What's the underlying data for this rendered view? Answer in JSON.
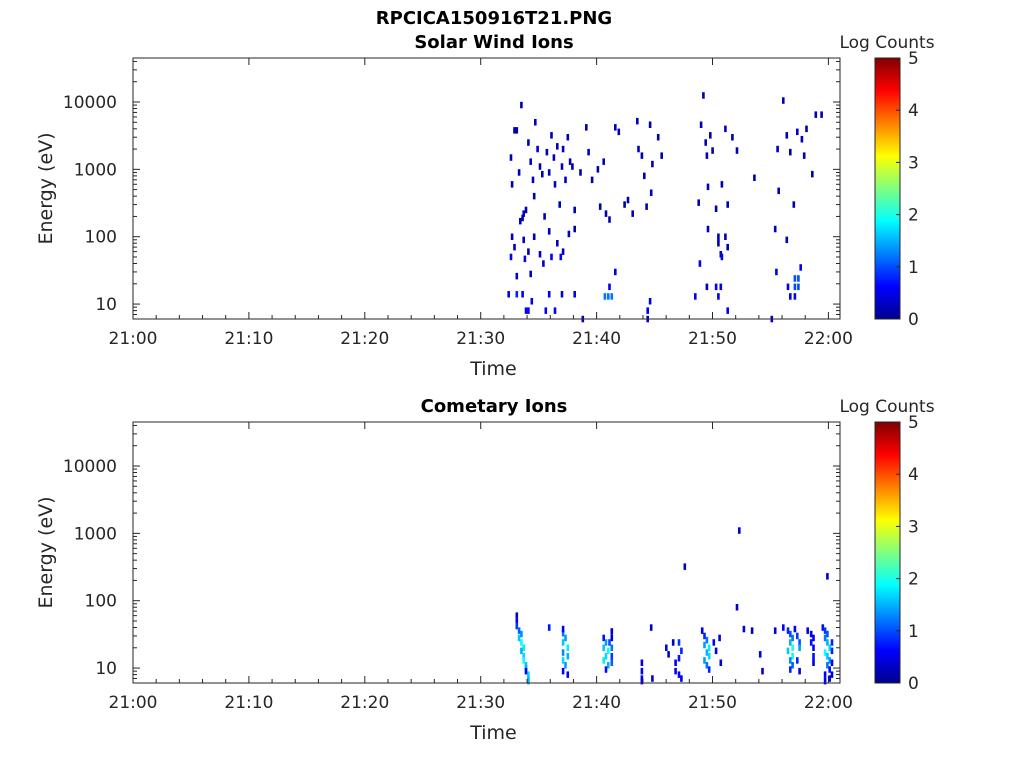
{
  "figure": {
    "filename": "RPCICA150916T21.PNG"
  },
  "colormap": {
    "name": "jet",
    "stops": [
      "#00008f",
      "#0000ff",
      "#0080ff",
      "#00ffff",
      "#80ff80",
      "#ffff00",
      "#ff8000",
      "#ff0000",
      "#800000"
    ]
  },
  "chart_data": [
    {
      "type": "heatmap",
      "title": "Solar Wind Ions",
      "xlabel": "Time",
      "ylabel": "Energy (eV)",
      "x_ticks": [
        "21:00",
        "21:10",
        "21:20",
        "21:30",
        "21:40",
        "21:50",
        "22:00"
      ],
      "x_range_min": [
        0,
        61
      ],
      "y_scale": "log",
      "y_ticks": [
        "10",
        "100",
        "1000",
        "10000"
      ],
      "y_range": [
        6,
        45000
      ],
      "colorbar": {
        "label": "Log Counts",
        "range": [
          0,
          5
        ],
        "ticks": [
          "0",
          "1",
          "2",
          "3",
          "4",
          "5"
        ]
      },
      "cells": [
        [
          32.5,
          1500,
          0.2
        ],
        [
          32.6,
          600,
          0.3
        ],
        [
          32.8,
          3800,
          0.2
        ],
        [
          33.0,
          3800,
          0.2
        ],
        [
          33.2,
          900,
          0.2
        ],
        [
          33.4,
          9000,
          0.2
        ],
        [
          33.5,
          190,
          0.3
        ],
        [
          33.6,
          220,
          0.3
        ],
        [
          33.8,
          250,
          0.2
        ],
        [
          34.0,
          2500,
          0.2
        ],
        [
          34.2,
          1300,
          0.3
        ],
        [
          34.4,
          700,
          0.2
        ],
        [
          34.5,
          400,
          0.2
        ],
        [
          34.6,
          5000,
          0.2
        ],
        [
          34.8,
          2000,
          0.3
        ],
        [
          35.0,
          1100,
          0.2
        ],
        [
          35.2,
          850,
          0.3
        ],
        [
          35.4,
          200,
          0.2
        ],
        [
          35.6,
          1800,
          0.2
        ],
        [
          35.8,
          900,
          0.3
        ],
        [
          36.0,
          3200,
          0.2
        ],
        [
          36.2,
          1500,
          0.2
        ],
        [
          36.3,
          600,
          0.3
        ],
        [
          36.5,
          2200,
          0.2
        ],
        [
          36.7,
          300,
          0.2
        ],
        [
          36.9,
          1100,
          0.3
        ],
        [
          37.0,
          2000,
          0.2
        ],
        [
          37.2,
          700,
          0.3
        ],
        [
          37.4,
          3000,
          0.2
        ],
        [
          37.6,
          1300,
          0.2
        ],
        [
          37.8,
          1100,
          0.2
        ],
        [
          38.0,
          250,
          0.3
        ],
        [
          38.5,
          900,
          0.2
        ],
        [
          39.0,
          4200,
          0.2
        ],
        [
          39.2,
          1800,
          0.2
        ],
        [
          39.5,
          700,
          0.2
        ],
        [
          40.0,
          1000,
          0.2
        ],
        [
          40.2,
          280,
          0.2
        ],
        [
          40.5,
          1300,
          0.3
        ],
        [
          40.7,
          220,
          0.2
        ],
        [
          41.0,
          180,
          0.2
        ],
        [
          41.5,
          4200,
          0.2
        ],
        [
          41.8,
          3600,
          0.2
        ],
        [
          42.3,
          300,
          0.2
        ],
        [
          42.6,
          350,
          0.2
        ],
        [
          43.0,
          220,
          0.2
        ],
        [
          43.4,
          5200,
          0.2
        ],
        [
          43.5,
          2000,
          0.3
        ],
        [
          43.8,
          1600,
          0.2
        ],
        [
          44.0,
          800,
          0.2
        ],
        [
          44.2,
          280,
          0.2
        ],
        [
          44.5,
          4600,
          0.2
        ],
        [
          44.6,
          450,
          0.3
        ],
        [
          44.7,
          1200,
          0.2
        ],
        [
          45.2,
          3000,
          0.2
        ],
        [
          45.5,
          1600,
          0.2
        ],
        [
          48.7,
          320,
          0.2
        ],
        [
          48.9,
          4600,
          0.2
        ],
        [
          49.1,
          12500,
          0.2
        ],
        [
          49.3,
          2500,
          0.2
        ],
        [
          49.4,
          1600,
          0.3
        ],
        [
          49.5,
          550,
          0.2
        ],
        [
          49.7,
          3200,
          0.2
        ],
        [
          49.9,
          1900,
          0.2
        ],
        [
          50.2,
          260,
          0.2
        ],
        [
          50.4,
          100,
          0.3
        ],
        [
          50.7,
          600,
          0.2
        ],
        [
          51.0,
          4000,
          0.2
        ],
        [
          51.2,
          300,
          0.2
        ],
        [
          51.6,
          3000,
          0.2
        ],
        [
          52.0,
          1900,
          0.2
        ],
        [
          53.5,
          750,
          0.2
        ],
        [
          55.5,
          2000,
          0.2
        ],
        [
          55.6,
          480,
          0.2
        ],
        [
          56.0,
          10500,
          0.2
        ],
        [
          56.3,
          3200,
          0.2
        ],
        [
          56.6,
          1800,
          0.2
        ],
        [
          56.9,
          300,
          0.2
        ],
        [
          57.2,
          3600,
          0.3
        ],
        [
          57.6,
          2800,
          0.2
        ],
        [
          57.8,
          1600,
          0.2
        ],
        [
          58.0,
          4000,
          0.2
        ],
        [
          58.5,
          850,
          0.2
        ],
        [
          58.8,
          6500,
          0.2
        ],
        [
          59.3,
          6500,
          0.2
        ],
        [
          32.6,
          100,
          0.3
        ],
        [
          32.8,
          70,
          0.3
        ],
        [
          33.3,
          170,
          0.2
        ],
        [
          33.6,
          90,
          0.3
        ],
        [
          34.0,
          60,
          0.2
        ],
        [
          34.5,
          100,
          0.2
        ],
        [
          35.0,
          55,
          0.3
        ],
        [
          35.3,
          40,
          0.3
        ],
        [
          35.8,
          120,
          0.2
        ],
        [
          36.5,
          80,
          0.2
        ],
        [
          37.0,
          60,
          0.2
        ],
        [
          37.5,
          110,
          0.3
        ],
        [
          38.0,
          130,
          0.2
        ],
        [
          49.5,
          130,
          0.2
        ],
        [
          50.4,
          80,
          0.2
        ],
        [
          50.6,
          55,
          0.3
        ],
        [
          51.0,
          100,
          0.2
        ],
        [
          51.2,
          70,
          0.2
        ],
        [
          55.3,
          130,
          0.2
        ],
        [
          56.3,
          90,
          0.2
        ],
        [
          32.5,
          50,
          0.6
        ],
        [
          33.7,
          47,
          0.6
        ],
        [
          36.0,
          50,
          0.6
        ],
        [
          36.8,
          50,
          0.6
        ],
        [
          48.8,
          40,
          0.6
        ],
        [
          50.7,
          50,
          0.6
        ],
        [
          33.0,
          26,
          0.3
        ],
        [
          34.2,
          28,
          0.3
        ],
        [
          41.5,
          30,
          0.4
        ],
        [
          55.4,
          30,
          0.5
        ],
        [
          57.5,
          35,
          0.6
        ],
        [
          57.0,
          24,
          1.0
        ],
        [
          57.3,
          24,
          1.0
        ],
        [
          57.0,
          18,
          1.0
        ],
        [
          57.3,
          18,
          1.0
        ],
        [
          56.4,
          18,
          0.5
        ],
        [
          50.2,
          18,
          0.6
        ],
        [
          50.6,
          18,
          0.5
        ],
        [
          49.4,
          18,
          0.3
        ],
        [
          41.0,
          18,
          0.5
        ],
        [
          32.3,
          14,
          0.5
        ],
        [
          33.0,
          14,
          0.8
        ],
        [
          33.5,
          14,
          0.6
        ],
        [
          34.3,
          11,
          0.5
        ],
        [
          35.8,
          14,
          0.5
        ],
        [
          36.9,
          14,
          0.5
        ],
        [
          38.0,
          14,
          0.5
        ],
        [
          40.6,
          13,
          1.2
        ],
        [
          40.9,
          13,
          1.2
        ],
        [
          41.2,
          13,
          1.2
        ],
        [
          44.5,
          11,
          0.5
        ],
        [
          48.4,
          13,
          0.5
        ],
        [
          50.4,
          13,
          0.5
        ],
        [
          51.2,
          8,
          0.5
        ],
        [
          56.6,
          13,
          0.6
        ],
        [
          57.0,
          13,
          0.6
        ],
        [
          33.8,
          8,
          0.6
        ],
        [
          34.0,
          8,
          0.6
        ],
        [
          35.5,
          8,
          0.6
        ],
        [
          36.3,
          8,
          0.6
        ],
        [
          44.3,
          8,
          0.5
        ],
        [
          55.0,
          6,
          0.3
        ],
        [
          38.7,
          6,
          0.3
        ],
        [
          44.3,
          6,
          0.3
        ]
      ]
    },
    {
      "type": "heatmap",
      "title": "Cometary Ions",
      "xlabel": "Time",
      "ylabel": "Energy (eV)",
      "x_ticks": [
        "21:00",
        "21:10",
        "21:20",
        "21:30",
        "21:40",
        "21:50",
        "22:00"
      ],
      "x_range_min": [
        0,
        61
      ],
      "y_scale": "log",
      "y_ticks": [
        "10",
        "100",
        "1000",
        "10000"
      ],
      "y_range": [
        6,
        45000
      ],
      "colorbar": {
        "label": "Log Counts",
        "range": [
          0,
          5
        ],
        "ticks": [
          "0",
          "1",
          "2",
          "3",
          "4",
          "5"
        ]
      },
      "cells": [
        [
          33.0,
          60,
          0.4
        ],
        [
          33.0,
          48,
          0.6
        ],
        [
          33.0,
          42,
          0.9
        ],
        [
          33.2,
          36,
          1.1
        ],
        [
          33.4,
          32,
          1.3
        ],
        [
          33.2,
          28,
          1.6
        ],
        [
          33.4,
          24,
          1.9
        ],
        [
          33.6,
          20,
          1.8
        ],
        [
          33.4,
          18,
          1.5
        ],
        [
          33.6,
          15,
          1.7
        ],
        [
          33.6,
          13,
          1.9
        ],
        [
          33.8,
          11,
          1.6
        ],
        [
          33.8,
          10,
          1.5
        ],
        [
          34.0,
          8,
          1.7
        ],
        [
          34.0,
          7,
          1.6
        ],
        [
          34.0,
          6.4,
          1.5
        ],
        [
          33.8,
          9,
          0.6
        ],
        [
          37.0,
          33,
          1.2
        ],
        [
          37.2,
          28,
          1.4
        ],
        [
          37.0,
          24,
          1.6
        ],
        [
          37.4,
          20,
          1.8
        ],
        [
          37.0,
          17,
          1.3
        ],
        [
          37.4,
          15,
          1.5
        ],
        [
          37.0,
          13,
          1.7
        ],
        [
          37.2,
          11,
          1.4
        ],
        [
          37.0,
          9,
          0.6
        ],
        [
          37.4,
          8,
          0.5
        ],
        [
          35.8,
          40,
          0.7
        ],
        [
          37.0,
          38,
          0.6
        ],
        [
          40.5,
          28,
          0.7
        ],
        [
          40.7,
          24,
          1.4
        ],
        [
          40.5,
          20,
          1.6
        ],
        [
          40.9,
          18,
          1.9
        ],
        [
          40.7,
          15,
          1.7
        ],
        [
          40.5,
          13,
          1.8
        ],
        [
          40.9,
          11,
          1.5
        ],
        [
          40.7,
          9.5,
          0.7
        ],
        [
          41.2,
          28,
          0.4
        ],
        [
          41.2,
          35,
          0.3
        ],
        [
          41.0,
          24,
          1.0
        ],
        [
          41.2,
          20,
          1.2
        ],
        [
          41.2,
          15,
          0.9
        ],
        [
          41.2,
          12,
          1.1
        ],
        [
          43.8,
          12,
          0.5
        ],
        [
          43.8,
          9,
          0.6
        ],
        [
          43.8,
          7,
          0.6
        ],
        [
          43.8,
          6.4,
          0.6
        ],
        [
          44.6,
          40,
          0.3
        ],
        [
          44.7,
          7,
          0.4
        ],
        [
          45.9,
          20,
          0.6
        ],
        [
          46.1,
          16,
          0.4
        ],
        [
          46.5,
          24,
          0.3
        ],
        [
          46.7,
          12,
          0.6
        ],
        [
          47.0,
          24,
          0.9
        ],
        [
          47.2,
          18,
          0.8
        ],
        [
          47.0,
          14,
          0.7
        ],
        [
          46.7,
          9,
          0.6
        ],
        [
          47.0,
          8,
          0.6
        ],
        [
          47.2,
          7,
          0.5
        ],
        [
          47.5,
          320,
          0.3
        ],
        [
          49.0,
          36,
          0.5
        ],
        [
          49.2,
          30,
          0.8
        ],
        [
          49.4,
          26,
          1.2
        ],
        [
          49.2,
          22,
          1.4
        ],
        [
          49.6,
          20,
          1.8
        ],
        [
          49.4,
          17,
          1.5
        ],
        [
          49.6,
          15,
          1.7
        ],
        [
          49.2,
          13,
          1.4
        ],
        [
          49.4,
          11,
          1.2
        ],
        [
          49.6,
          9.5,
          0.8
        ],
        [
          50.0,
          24,
          0.6
        ],
        [
          50.2,
          18,
          0.5
        ],
        [
          50.5,
          28,
          0.4
        ],
        [
          50.6,
          12,
          0.4
        ],
        [
          52.0,
          80,
          0.3
        ],
        [
          52.2,
          1100,
          0.3
        ],
        [
          52.6,
          38,
          0.4
        ],
        [
          53.3,
          36,
          0.3
        ],
        [
          54.0,
          16,
          0.4
        ],
        [
          54.2,
          9,
          0.4
        ],
        [
          55.3,
          36,
          0.3
        ],
        [
          56.0,
          40,
          0.6
        ],
        [
          56.4,
          36,
          0.8
        ],
        [
          56.6,
          32,
          1.0
        ],
        [
          56.8,
          28,
          1.2
        ],
        [
          56.6,
          24,
          1.5
        ],
        [
          56.8,
          20,
          2.0
        ],
        [
          56.4,
          18,
          1.6
        ],
        [
          56.8,
          15,
          1.9
        ],
        [
          56.6,
          13,
          1.3
        ],
        [
          56.8,
          11,
          1.1
        ],
        [
          56.6,
          9.5,
          0.8
        ],
        [
          57.0,
          38,
          0.6
        ],
        [
          57.2,
          30,
          0.9
        ],
        [
          57.4,
          24,
          1.0
        ],
        [
          57.4,
          20,
          1.4
        ],
        [
          57.2,
          13,
          0.8
        ],
        [
          57.4,
          9,
          0.5
        ],
        [
          58.1,
          36,
          0.4
        ],
        [
          58.4,
          32,
          0.5
        ],
        [
          58.6,
          28,
          0.6
        ],
        [
          58.4,
          24,
          0.7
        ],
        [
          58.6,
          20,
          0.6
        ],
        [
          58.6,
          15,
          0.7
        ],
        [
          58.6,
          12,
          0.5
        ],
        [
          59.4,
          40,
          0.7
        ],
        [
          59.6,
          36,
          0.9
        ],
        [
          59.8,
          32,
          1.0
        ],
        [
          59.6,
          28,
          1.2
        ],
        [
          59.8,
          24,
          1.5
        ],
        [
          60.0,
          20,
          1.7
        ],
        [
          59.6,
          17,
          1.9
        ],
        [
          59.8,
          15,
          1.6
        ],
        [
          60.0,
          13,
          1.4
        ],
        [
          59.8,
          11,
          1.2
        ],
        [
          60.0,
          9.5,
          0.7
        ],
        [
          59.6,
          8,
          0.6
        ],
        [
          60.0,
          7,
          0.6
        ],
        [
          59.6,
          6.4,
          0.6
        ],
        [
          60.2,
          24,
          0.8
        ],
        [
          60.2,
          18,
          0.8
        ],
        [
          60.2,
          12,
          0.6
        ],
        [
          60.2,
          8,
          0.5
        ],
        [
          59.8,
          230,
          0.3
        ]
      ]
    }
  ]
}
